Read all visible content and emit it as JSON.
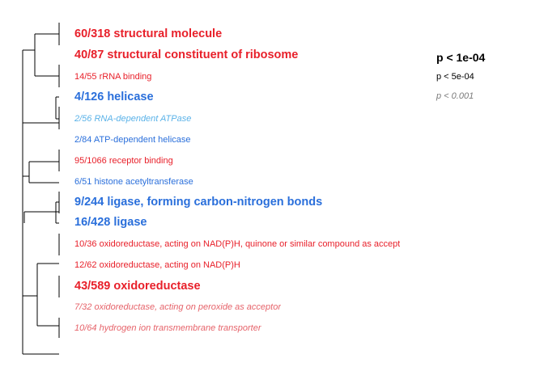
{
  "colors": {
    "red": "#e8202a",
    "red_light": "#e6636a",
    "blue": "#2a6fdb",
    "blue_light": "#5ab2e8",
    "black": "#000000",
    "grey": "#7a7a7a"
  },
  "legend": [
    {
      "text": "p < 1e-04",
      "style": "large-bold"
    },
    {
      "text": "p < 5e-04",
      "style": "small"
    },
    {
      "text": "p < 0.001",
      "style": "small-italic-grey"
    }
  ],
  "terms": [
    {
      "text": "60/318 structural molecule",
      "color": "red",
      "size": "large",
      "italic": false
    },
    {
      "text": "40/87 structural constituent of ribosome",
      "color": "red",
      "size": "large",
      "italic": false
    },
    {
      "text": "14/55 rRNA binding",
      "color": "red",
      "size": "small",
      "italic": false
    },
    {
      "text": "4/126 helicase",
      "color": "blue",
      "size": "large",
      "italic": false
    },
    {
      "text": "2/56 RNA-dependent ATPase",
      "color": "blue_light",
      "size": "small",
      "italic": true
    },
    {
      "text": "2/84 ATP-dependent helicase",
      "color": "blue",
      "size": "small",
      "italic": false
    },
    {
      "text": "95/1066 receptor binding",
      "color": "red",
      "size": "small",
      "italic": false
    },
    {
      "text": "6/51 histone acetyltransferase",
      "color": "blue",
      "size": "small",
      "italic": false
    },
    {
      "text": "9/244 ligase, forming carbon-nitrogen bonds",
      "color": "blue",
      "size": "large",
      "italic": false
    },
    {
      "text": "16/428 ligase",
      "color": "blue",
      "size": "large",
      "italic": false
    },
    {
      "text": "10/36 oxidoreductase, acting on NAD(P)H, quinone or similar compound as accept",
      "color": "red",
      "size": "small",
      "italic": false
    },
    {
      "text": "12/62 oxidoreductase, acting on NAD(P)H",
      "color": "red",
      "size": "small",
      "italic": false
    },
    {
      "text": "43/589 oxidoreductase",
      "color": "red",
      "size": "large",
      "italic": false
    },
    {
      "text": "7/32 oxidoreductase, acting on peroxide as acceptor",
      "color": "red_light",
      "size": "small",
      "italic": true
    },
    {
      "text": "10/64 hydrogen ion transmembrane transporter",
      "color": "red_light",
      "size": "small",
      "italic": true
    }
  ]
}
